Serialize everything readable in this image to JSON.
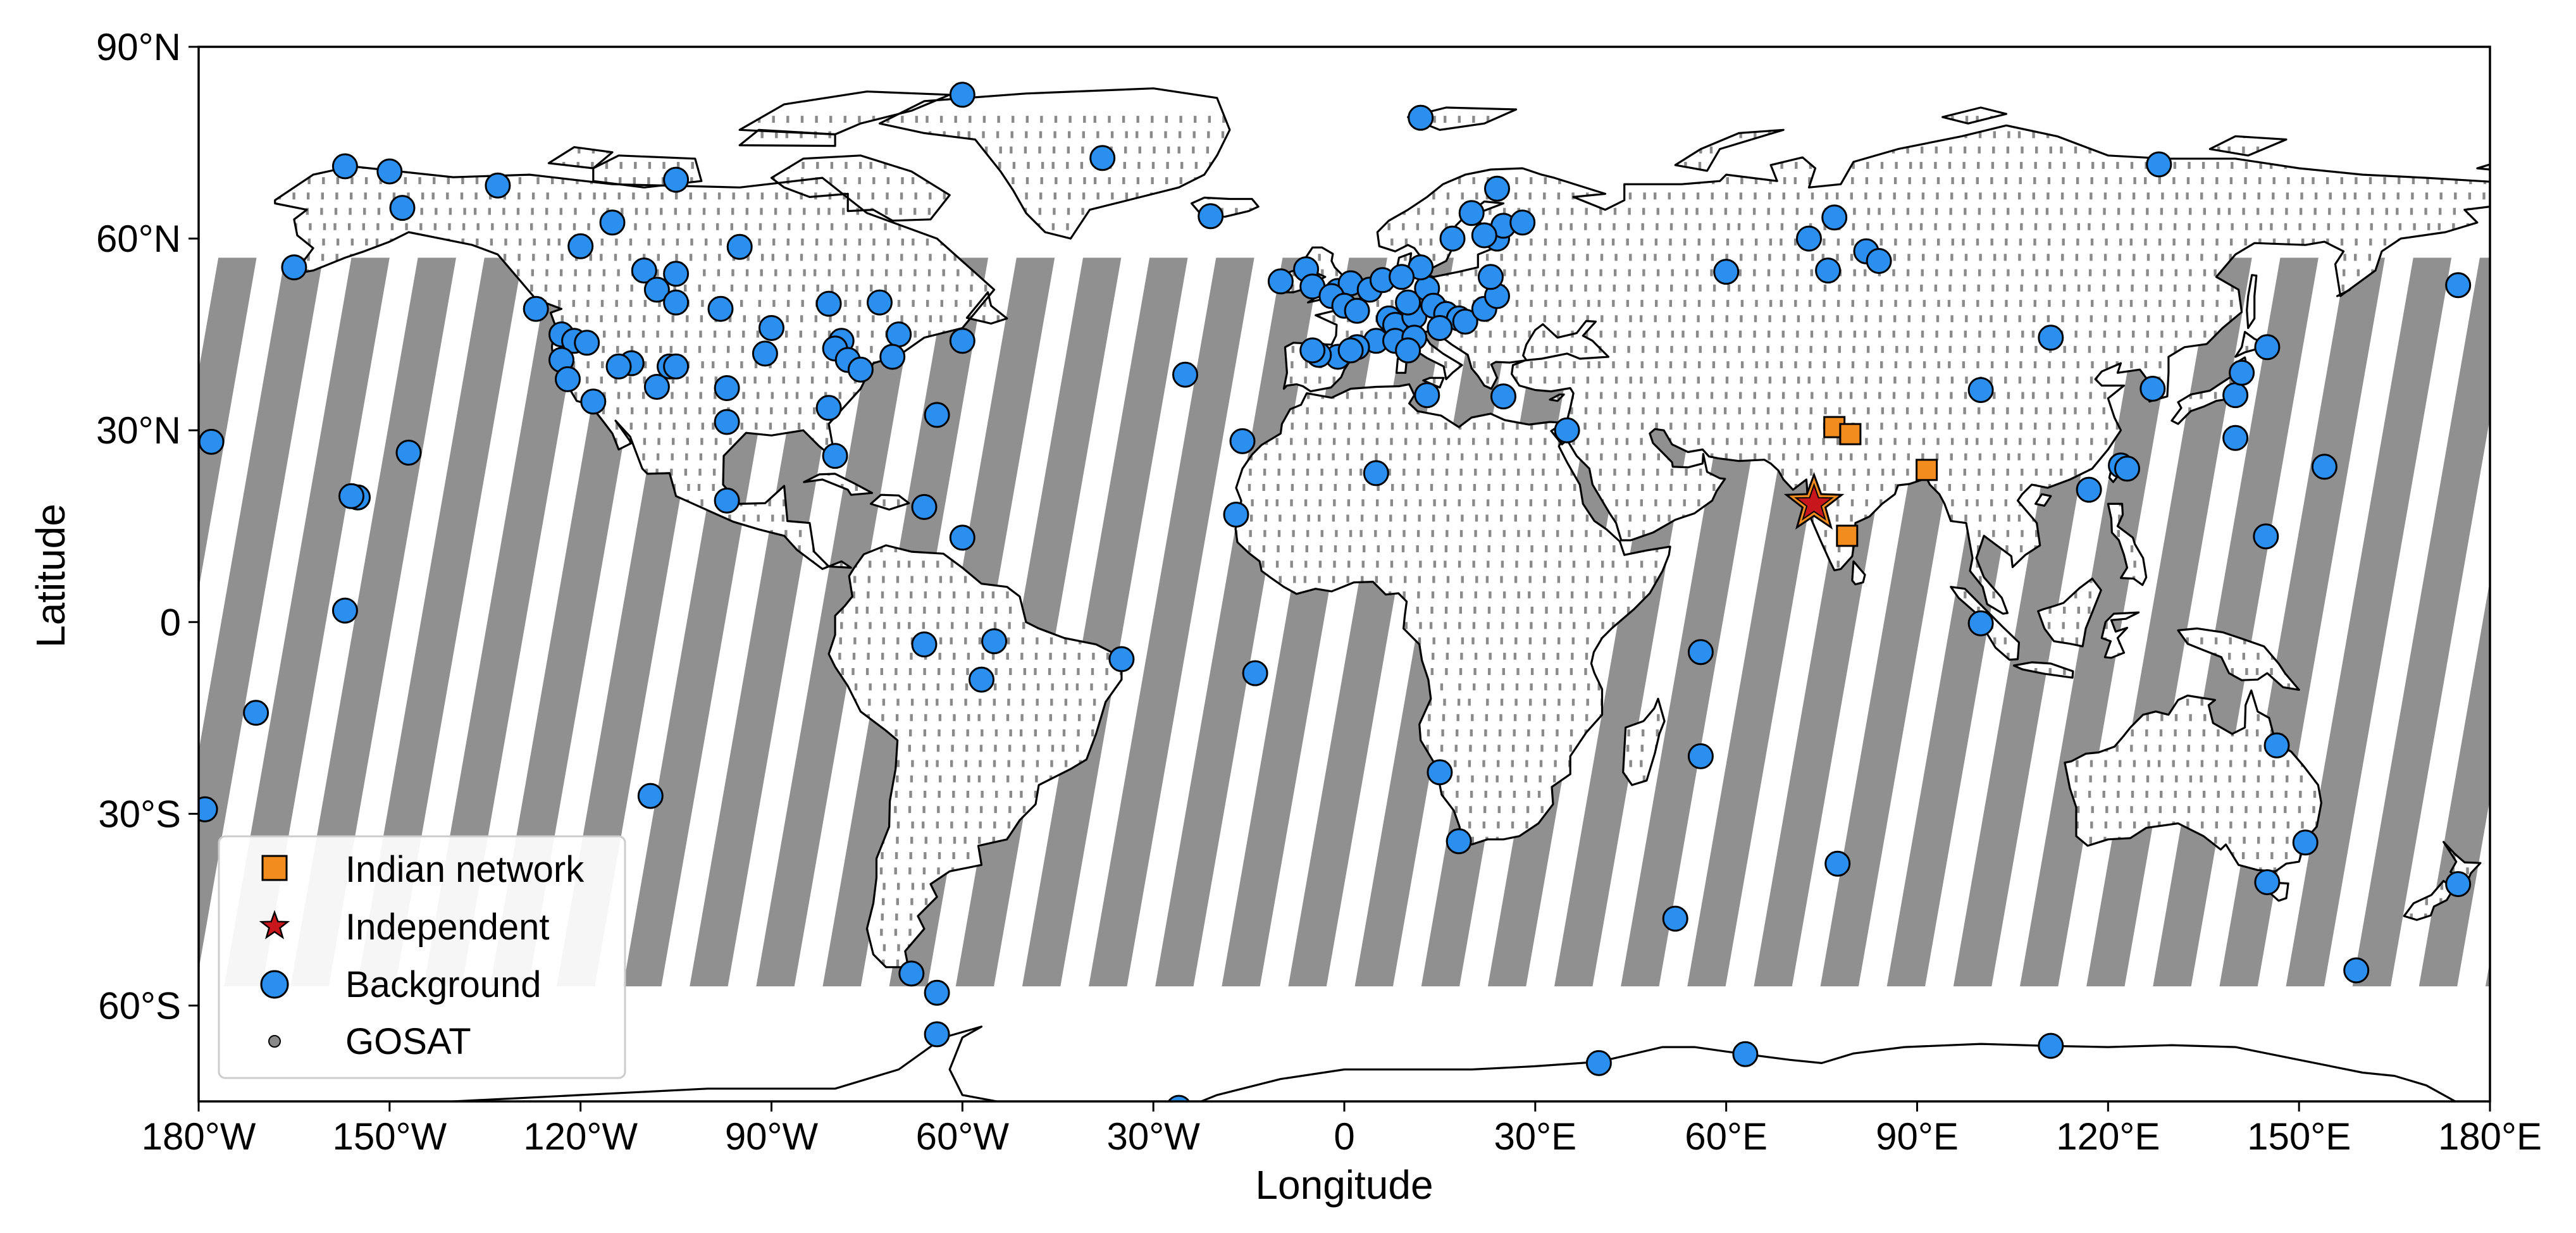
{
  "map": {
    "xlabel": "Longitude",
    "ylabel": "Latitude",
    "x_range_deg": [
      -180,
      180
    ],
    "y_range_deg": [
      -75,
      90
    ],
    "x_ticks": [
      {
        "value": -180,
        "label": "180°W"
      },
      {
        "value": -150,
        "label": "150°W"
      },
      {
        "value": -120,
        "label": "120°W"
      },
      {
        "value": -90,
        "label": "90°W"
      },
      {
        "value": -60,
        "label": "60°W"
      },
      {
        "value": -30,
        "label": "30°W"
      },
      {
        "value": 0,
        "label": "0"
      },
      {
        "value": 30,
        "label": "30°E"
      },
      {
        "value": 60,
        "label": "60°E"
      },
      {
        "value": 90,
        "label": "90°E"
      },
      {
        "value": 120,
        "label": "120°E"
      },
      {
        "value": 150,
        "label": "150°E"
      },
      {
        "value": 180,
        "label": "180°E"
      }
    ],
    "y_ticks": [
      {
        "value": 90,
        "label": "90°N"
      },
      {
        "value": 60,
        "label": "60°N"
      },
      {
        "value": 30,
        "label": "30°N"
      },
      {
        "value": 0,
        "label": "0"
      },
      {
        "value": -30,
        "label": "30°S"
      },
      {
        "value": -60,
        "label": "60°S"
      }
    ],
    "colors": {
      "background_station": "#2b8ff0",
      "indian_network": "#f28c1e",
      "independent": "#c8161d",
      "gosat": "#8a8a8a",
      "coastline": "#000000"
    },
    "legend": {
      "position": "lower-left",
      "entries": [
        {
          "label": "Indian network",
          "marker": "square",
          "color": "#f28c1e"
        },
        {
          "label": "Independent",
          "marker": "star",
          "color": "#c8161d"
        },
        {
          "label": "Background",
          "marker": "circle",
          "color": "#2b8ff0"
        },
        {
          "label": "GOSAT",
          "marker": "small-circle",
          "color": "#8a8a8a"
        }
      ]
    },
    "indian_network": [
      {
        "lon": 77.0,
        "lat": 30.5
      },
      {
        "lon": 79.5,
        "lat": 29.4
      },
      {
        "lon": 91.5,
        "lat": 23.8
      },
      {
        "lon": 79.0,
        "lat": 13.5
      }
    ],
    "independent": [
      {
        "lon": 73.8,
        "lat": 18.5
      }
    ],
    "background": [
      {
        "lon": -60,
        "lat": 82.5
      },
      {
        "lon": -38,
        "lat": 72.6
      },
      {
        "lon": -21,
        "lat": 63.5
      },
      {
        "lon": -157,
        "lat": 71.3
      },
      {
        "lon": -150,
        "lat": 70.5
      },
      {
        "lon": -148,
        "lat": 64.8
      },
      {
        "lon": -133,
        "lat": 68.3
      },
      {
        "lon": -165,
        "lat": 55.5
      },
      {
        "lon": -115,
        "lat": 62.5
      },
      {
        "lon": -105,
        "lat": 69.2
      },
      {
        "lon": -95,
        "lat": 58.7
      },
      {
        "lon": -120,
        "lat": 58.8
      },
      {
        "lon": -105,
        "lat": 54.5
      },
      {
        "lon": -110,
        "lat": 55.0
      },
      {
        "lon": -108,
        "lat": 52.0
      },
      {
        "lon": -105,
        "lat": 50.0
      },
      {
        "lon": -98,
        "lat": 49.0
      },
      {
        "lon": -127,
        "lat": 49.0
      },
      {
        "lon": -123,
        "lat": 45.0
      },
      {
        "lon": -121,
        "lat": 44.0
      },
      {
        "lon": -123,
        "lat": 41.0
      },
      {
        "lon": -119,
        "lat": 43.7
      },
      {
        "lon": -122,
        "lat": 38.0
      },
      {
        "lon": -118,
        "lat": 34.5
      },
      {
        "lon": -112,
        "lat": 40.5
      },
      {
        "lon": -114,
        "lat": 40.0
      },
      {
        "lon": -106,
        "lat": 40.0
      },
      {
        "lon": -105,
        "lat": 40.0
      },
      {
        "lon": -108,
        "lat": 36.8
      },
      {
        "lon": -97,
        "lat": 36.6
      },
      {
        "lon": -97,
        "lat": 31.3
      },
      {
        "lon": -90,
        "lat": 46.0
      },
      {
        "lon": -91,
        "lat": 42.0
      },
      {
        "lon": -81,
        "lat": 49.8
      },
      {
        "lon": -79,
        "lat": 44.0
      },
      {
        "lon": -80,
        "lat": 42.8
      },
      {
        "lon": -78,
        "lat": 41.0
      },
      {
        "lon": -76,
        "lat": 39.5
      },
      {
        "lon": -81,
        "lat": 33.5
      },
      {
        "lon": -80,
        "lat": 26.0
      },
      {
        "lon": -73,
        "lat": 50.0
      },
      {
        "lon": -70,
        "lat": 45.0
      },
      {
        "lon": -71,
        "lat": 41.5
      },
      {
        "lon": -64,
        "lat": 32.4
      },
      {
        "lon": -60,
        "lat": 44.0
      },
      {
        "lon": -60,
        "lat": 13.2
      },
      {
        "lon": -66,
        "lat": 18.0
      },
      {
        "lon": -97,
        "lat": 19.0
      },
      {
        "lon": -147,
        "lat": 26.5
      },
      {
        "lon": -155,
        "lat": 19.5
      },
      {
        "lon": -156,
        "lat": 19.7
      },
      {
        "lon": -157,
        "lat": 1.8
      },
      {
        "lon": -178,
        "lat": 28.2
      },
      {
        "lon": -171,
        "lat": -14.2
      },
      {
        "lon": -179,
        "lat": -29.3
      },
      {
        "lon": -109,
        "lat": -27.2
      },
      {
        "lon": -66,
        "lat": -3.5
      },
      {
        "lon": -55,
        "lat": -3.0
      },
      {
        "lon": -57,
        "lat": -9.0
      },
      {
        "lon": -35,
        "lat": -5.8
      },
      {
        "lon": -14,
        "lat": -8.0
      },
      {
        "lon": -25,
        "lat": 38.7
      },
      {
        "lon": -17,
        "lat": 16.8
      },
      {
        "lon": -16,
        "lat": 28.3
      },
      {
        "lon": -68,
        "lat": -55.0
      },
      {
        "lon": -64,
        "lat": -58.0
      },
      {
        "lon": -64,
        "lat": -64.5
      },
      {
        "lon": -26,
        "lat": -76.0
      },
      {
        "lon": -6,
        "lat": 55.2
      },
      {
        "lon": -10,
        "lat": 53.3
      },
      {
        "lon": -5,
        "lat": 52.5
      },
      {
        "lon": -1,
        "lat": 51.8
      },
      {
        "lon": 1,
        "lat": 53.0
      },
      {
        "lon": 4,
        "lat": 52.0
      },
      {
        "lon": 6,
        "lat": 53.5
      },
      {
        "lon": -2,
        "lat": 51.0
      },
      {
        "lon": 0,
        "lat": 49.5
      },
      {
        "lon": 2,
        "lat": 48.7
      },
      {
        "lon": 7,
        "lat": 47.5
      },
      {
        "lon": 8,
        "lat": 46.5
      },
      {
        "lon": 11,
        "lat": 47.8
      },
      {
        "lon": 10,
        "lat": 50.0
      },
      {
        "lon": 13,
        "lat": 52.2
      },
      {
        "lon": 12,
        "lat": 55.5
      },
      {
        "lon": 9,
        "lat": 54.0
      },
      {
        "lon": 14,
        "lat": 49.5
      },
      {
        "lon": 16,
        "lat": 48.2
      },
      {
        "lon": 18,
        "lat": 47.5
      },
      {
        "lon": 15,
        "lat": 46.0
      },
      {
        "lon": 5,
        "lat": 44.0
      },
      {
        "lon": 2,
        "lat": 43.0
      },
      {
        "lon": -1,
        "lat": 41.5
      },
      {
        "lon": 1,
        "lat": 42.5
      },
      {
        "lon": -4,
        "lat": 41.8
      },
      {
        "lon": -5,
        "lat": 42.5
      },
      {
        "lon": 8,
        "lat": 44.0
      },
      {
        "lon": 11,
        "lat": 44.5
      },
      {
        "lon": 10,
        "lat": 42.5
      },
      {
        "lon": 19,
        "lat": 47.0
      },
      {
        "lon": 22,
        "lat": 49.0
      },
      {
        "lon": 24,
        "lat": 51.0
      },
      {
        "lon": 24,
        "lat": 60.0
      },
      {
        "lon": 25,
        "lat": 62.0
      },
      {
        "lon": 22,
        "lat": 60.5
      },
      {
        "lon": 17,
        "lat": 60.0
      },
      {
        "lon": 20,
        "lat": 64.0
      },
      {
        "lon": 24,
        "lat": 67.8
      },
      {
        "lon": 28,
        "lat": 62.5
      },
      {
        "lon": 23,
        "lat": 54.0
      },
      {
        "lon": 12,
        "lat": 78.9
      },
      {
        "lon": 13,
        "lat": 35.5
      },
      {
        "lon": 25,
        "lat": 35.3
      },
      {
        "lon": 35,
        "lat": 30.0
      },
      {
        "lon": 5,
        "lat": 23.3
      },
      {
        "lon": 15,
        "lat": -23.5
      },
      {
        "lon": 18,
        "lat": -34.3
      },
      {
        "lon": 40,
        "lat": -69.0
      },
      {
        "lon": 63,
        "lat": -67.6
      },
      {
        "lon": 111,
        "lat": -66.3
      },
      {
        "lon": 52,
        "lat": -46.4
      },
      {
        "lon": 56,
        "lat": -21.0
      },
      {
        "lon": 56,
        "lat": -4.7
      },
      {
        "lon": 77.5,
        "lat": -37.8
      },
      {
        "lon": 60,
        "lat": 54.8
      },
      {
        "lon": 73,
        "lat": 60.0
      },
      {
        "lon": 76,
        "lat": 55.0
      },
      {
        "lon": 77,
        "lat": 63.3
      },
      {
        "lon": 82,
        "lat": 58.0
      },
      {
        "lon": 84,
        "lat": 56.5
      },
      {
        "lon": 111,
        "lat": 44.5
      },
      {
        "lon": 100,
        "lat": 36.3
      },
      {
        "lon": 128,
        "lat": 71.6
      },
      {
        "lon": 117,
        "lat": 20.7
      },
      {
        "lon": 122,
        "lat": 24.5
      },
      {
        "lon": 123,
        "lat": 24.0
      },
      {
        "lon": 100,
        "lat": -0.2
      },
      {
        "lon": 127,
        "lat": 36.5
      },
      {
        "lon": 140,
        "lat": 35.5
      },
      {
        "lon": 141,
        "lat": 39.0
      },
      {
        "lon": 145,
        "lat": 43.0
      },
      {
        "lon": 140,
        "lat": 28.8
      },
      {
        "lon": 144.8,
        "lat": 13.4
      },
      {
        "lon": 154,
        "lat": 24.3
      },
      {
        "lon": 175,
        "lat": 52.7
      },
      {
        "lon": 146.5,
        "lat": -19.3
      },
      {
        "lon": 151,
        "lat": -34.5
      },
      {
        "lon": 145,
        "lat": -40.7
      },
      {
        "lon": 159,
        "lat": -54.5
      },
      {
        "lon": 175,
        "lat": -41.0
      }
    ]
  }
}
